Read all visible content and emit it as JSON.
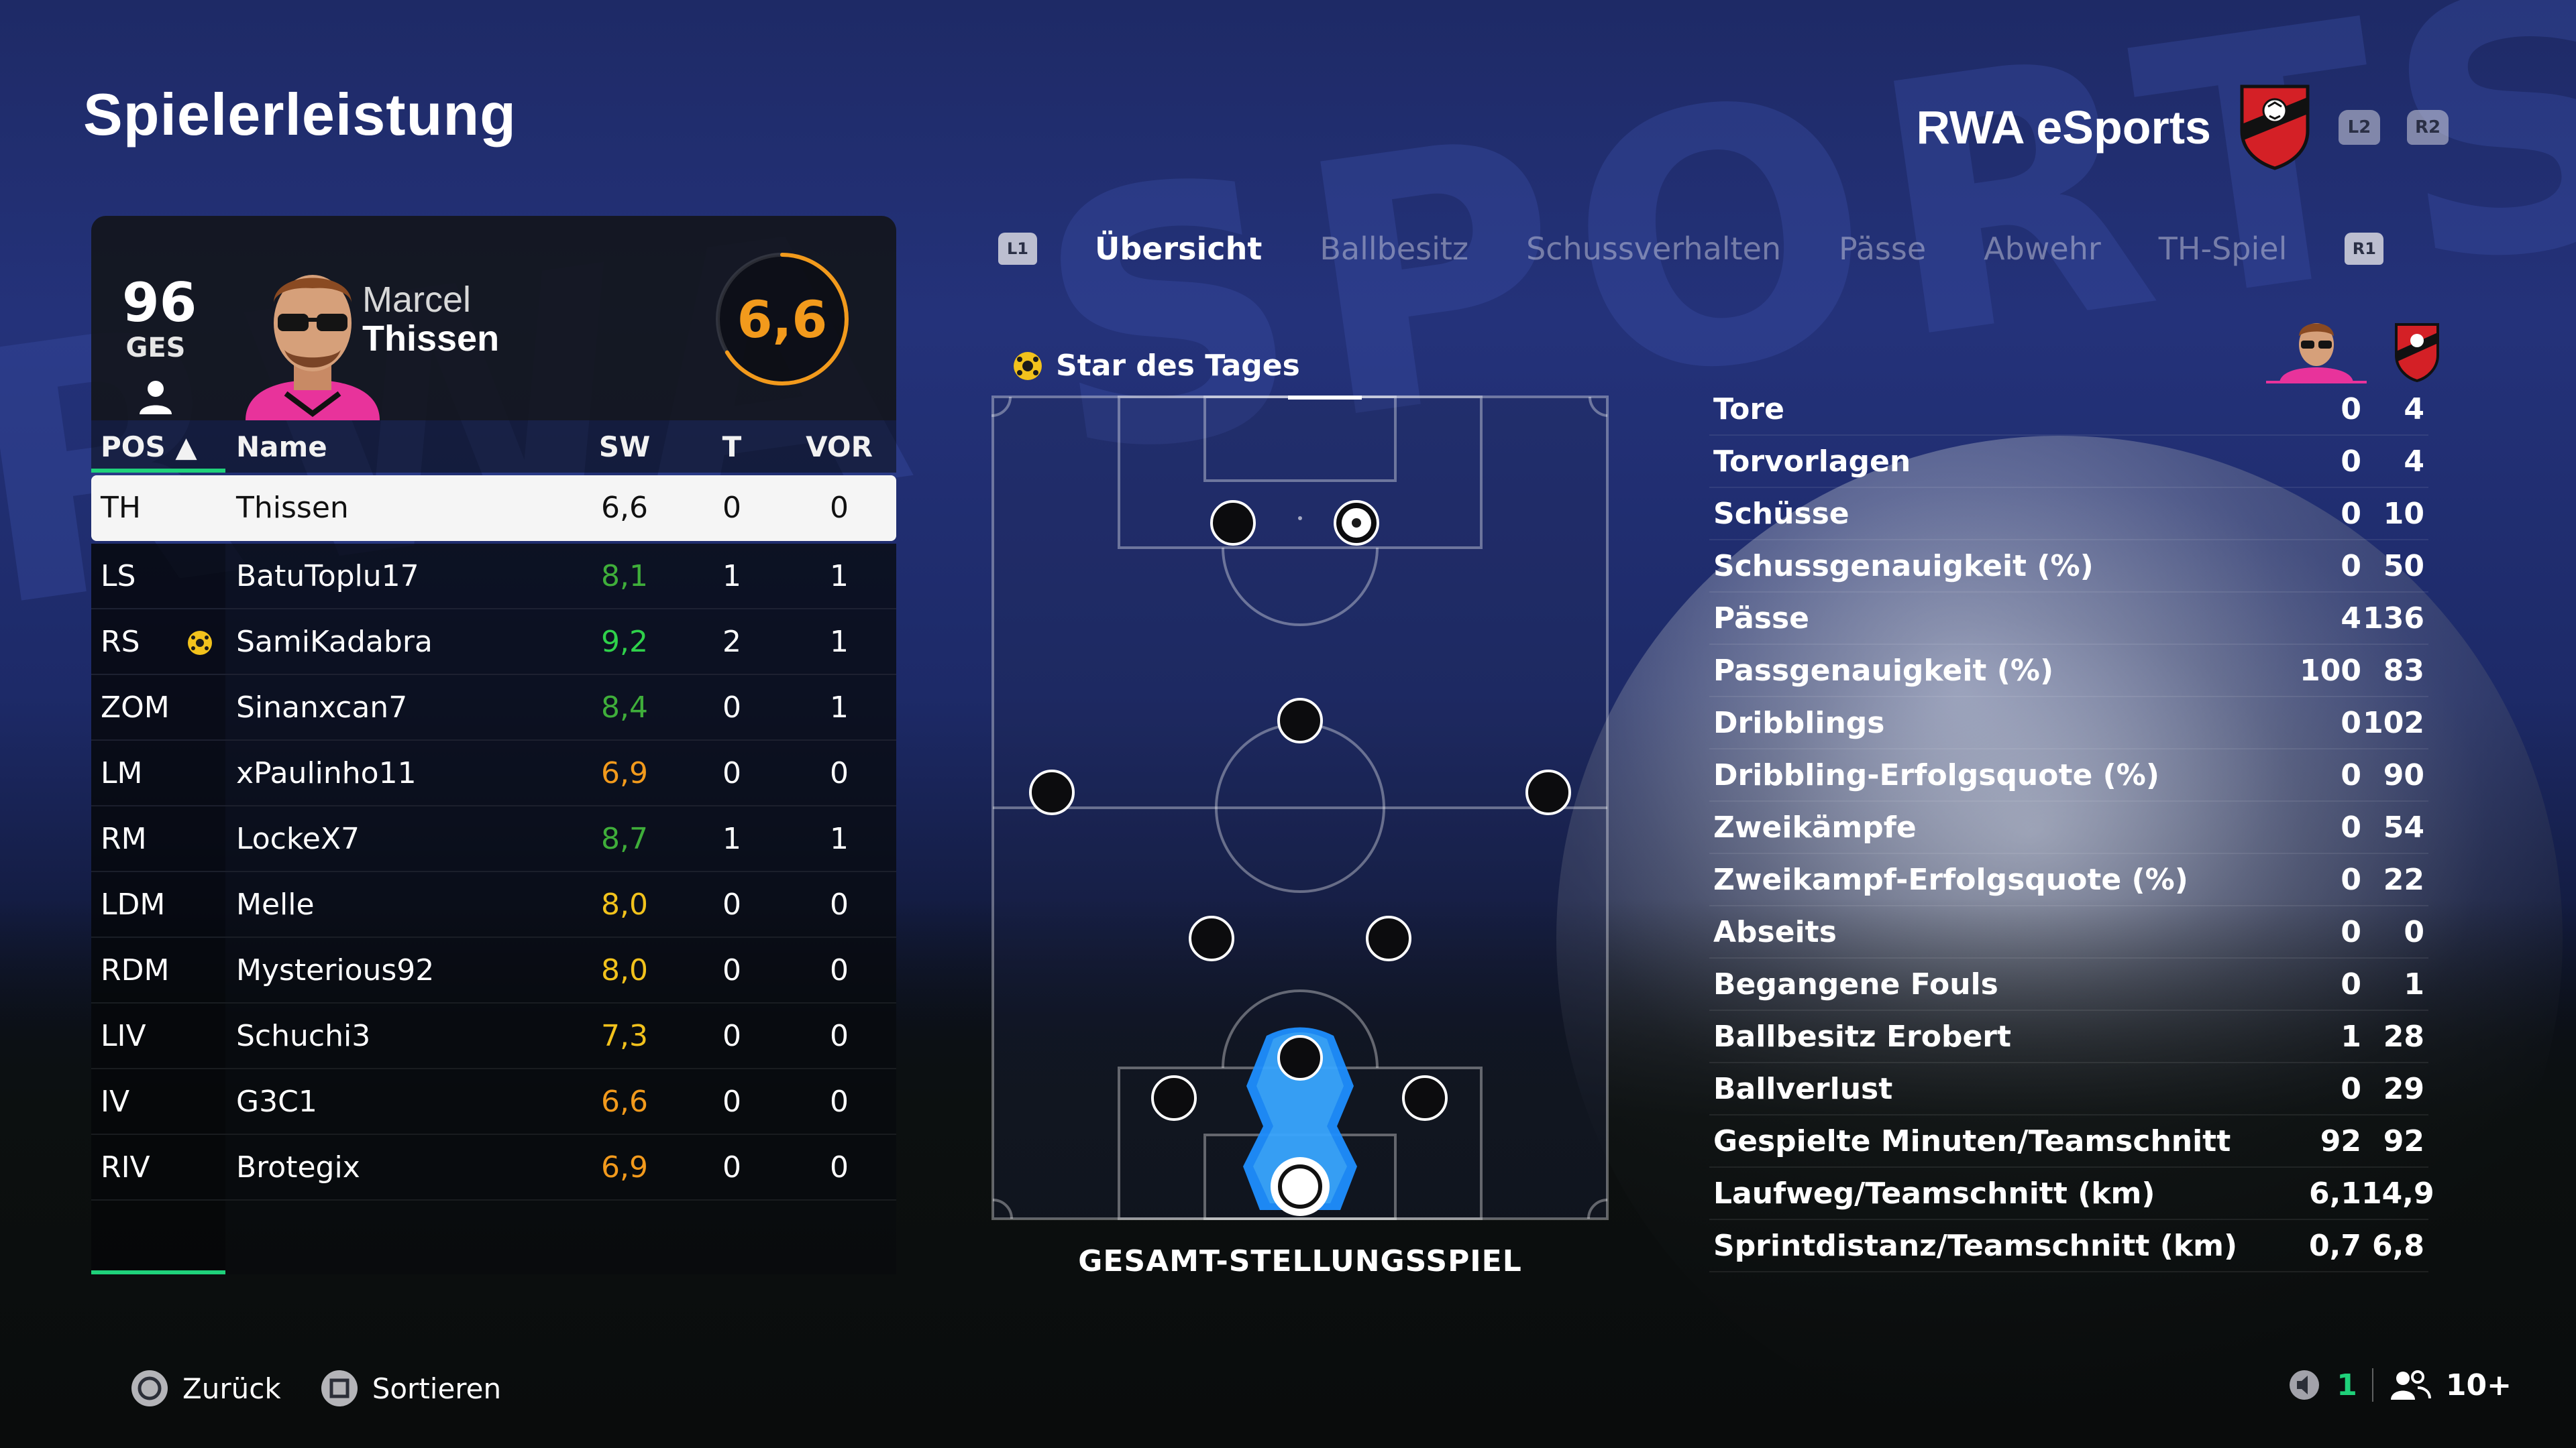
{
  "page": {
    "title": "Spielerleistung",
    "bg_word": "RWA SPORTS"
  },
  "team": {
    "name": "RWA eSports",
    "l2": "L2",
    "r2": "R2",
    "accent": "#d42026"
  },
  "player": {
    "overall": "96",
    "overall_label": "GES",
    "first_name": "Marcel",
    "last_name": "Thissen",
    "rating": "6,6",
    "rating_color": "#f29a1c"
  },
  "roster": {
    "headers": {
      "pos": "POS ▲",
      "name": "Name",
      "sw": "SW",
      "t": "T",
      "vor": "VOR"
    },
    "rows": [
      {
        "pos": "TH",
        "name": "Thissen",
        "sw": "6,6",
        "t": "0",
        "vor": "0",
        "color": "#111111"
      },
      {
        "pos": "LS",
        "name": "BatuToplu17",
        "sw": "8,1",
        "t": "1",
        "vor": "1",
        "color": "#3fae3a"
      },
      {
        "pos": "RS",
        "name": "SamiKadabra",
        "sw": "9,2",
        "t": "2",
        "vor": "1",
        "color": "#2fd14a",
        "star": true
      },
      {
        "pos": "ZOM",
        "name": "Sinanxcan7",
        "sw": "8,4",
        "t": "0",
        "vor": "1",
        "color": "#3fae3a"
      },
      {
        "pos": "LM",
        "name": "xPaulinho11",
        "sw": "6,9",
        "t": "0",
        "vor": "0",
        "color": "#f29a1c"
      },
      {
        "pos": "RM",
        "name": "LockeX7",
        "sw": "8,7",
        "t": "1",
        "vor": "1",
        "color": "#3fae3a"
      },
      {
        "pos": "LDM",
        "name": "Melle",
        "sw": "8,0",
        "t": "0",
        "vor": "0",
        "color": "#f2c21c"
      },
      {
        "pos": "RDM",
        "name": "Mysterious92",
        "sw": "8,0",
        "t": "0",
        "vor": "0",
        "color": "#f2c21c"
      },
      {
        "pos": "LIV",
        "name": "Schuchi3",
        "sw": "7,3",
        "t": "0",
        "vor": "0",
        "color": "#f2c21c"
      },
      {
        "pos": "IV",
        "name": "G3C1",
        "sw": "6,6",
        "t": "0",
        "vor": "0",
        "color": "#f29a1c"
      },
      {
        "pos": "RIV",
        "name": "Brotegix",
        "sw": "6,9",
        "t": "0",
        "vor": "0",
        "color": "#f29a1c"
      }
    ]
  },
  "tabs": {
    "l1": "L1",
    "r1": "R1",
    "items": [
      "Übersicht",
      "Ballbesitz",
      "Schussverhalten",
      "Pässe",
      "Abwehr",
      "TH-Spiel"
    ],
    "active": "Übersicht"
  },
  "pitch": {
    "star_label": "Star des Tages",
    "caption": "GESAMT-STELLUNGSSPIEL",
    "heat_color": "#1e8fff"
  },
  "stats": [
    {
      "label": "Tore",
      "player": "0",
      "team": "4"
    },
    {
      "label": "Torvorlagen",
      "player": "0",
      "team": "4"
    },
    {
      "label": "Schüsse",
      "player": "0",
      "team": "10"
    },
    {
      "label": "Schussgenauigkeit (%)",
      "player": "0",
      "team": "50"
    },
    {
      "label": "Pässe",
      "player": "4",
      "team": "136"
    },
    {
      "label": "Passgenauigkeit (%)",
      "player": "100",
      "team": "83"
    },
    {
      "label": "Dribblings",
      "player": "0",
      "team": "102"
    },
    {
      "label": "Dribbling-Erfolgsquote (%)",
      "player": "0",
      "team": "90"
    },
    {
      "label": "Zweikämpfe",
      "player": "0",
      "team": "54"
    },
    {
      "label": "Zweikampf-Erfolgsquote (%)",
      "player": "0",
      "team": "22"
    },
    {
      "label": "Abseits",
      "player": "0",
      "team": "0"
    },
    {
      "label": "Begangene Fouls",
      "player": "0",
      "team": "1"
    },
    {
      "label": "Ballbesitz Erobert",
      "player": "1",
      "team": "28"
    },
    {
      "label": "Ballverlust",
      "player": "0",
      "team": "29"
    },
    {
      "label": "Gespielte Minuten/Teamschnitt",
      "player": "92",
      "team": "92"
    },
    {
      "label": "Laufweg/Teamschnitt (km)",
      "player": "6,1",
      "team": "14,9"
    },
    {
      "label": "Sprintdistanz/Teamschnitt (km)",
      "player": "0,7",
      "team": "6,8"
    }
  ],
  "footer": {
    "back": "Zurück",
    "sort": "Sortieren",
    "mic_count": "1",
    "party_count": "10+"
  }
}
